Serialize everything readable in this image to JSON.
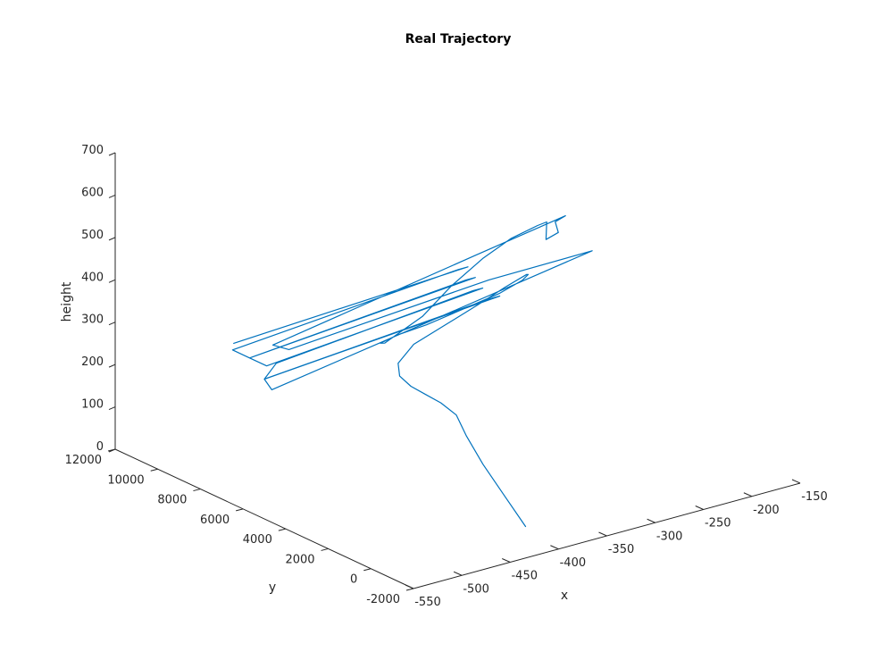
{
  "chart_data": {
    "type": "line",
    "title": "Real Trajectory",
    "xlabel": "x",
    "ylabel": "y",
    "zlabel": "height",
    "xlim": [
      -550,
      -150
    ],
    "ylim": [
      -2000,
      12000
    ],
    "zlim": [
      0,
      700
    ],
    "xticks": [
      -550,
      -500,
      -450,
      -400,
      -350,
      -300,
      -250,
      -200,
      -150
    ],
    "yticks": [
      -2000,
      0,
      2000,
      4000,
      6000,
      8000,
      10000,
      12000
    ],
    "zticks": [
      0,
      100,
      200,
      300,
      400,
      500,
      600,
      700
    ],
    "grid": false,
    "series_color": "#0072BD",
    "series": [
      {
        "description": "spiral climb then lawnmower survey pattern",
        "x": [
          -390,
          -390,
          -390,
          -385,
          -380,
          -385,
          -395,
          -405,
          -410,
          -405,
          -380,
          -340,
          -300,
          -270,
          -250,
          -255,
          -270,
          -300,
          -340,
          -380,
          -410,
          -430,
          -430,
          -380,
          -330,
          -280,
          -240,
          -210,
          -205,
          -230,
          -215,
          -205,
          -190,
          -300,
          -550,
          -540,
          -300,
          -180,
          -240,
          -560,
          -550,
          -280,
          -290,
          -550,
          -520,
          -290,
          -280,
          -530,
          -530,
          -280,
          -270,
          -530,
          -530,
          -270,
          -260,
          -520
        ],
        "y": [
          0,
          1000,
          2000,
          3000,
          3700,
          4200,
          4500,
          4700,
          5000,
          5300,
          5700,
          6000,
          6300,
          6400,
          6300,
          6000,
          5600,
          5300,
          5200,
          5100,
          5100,
          5000,
          4800,
          5300,
          6200,
          7000,
          7500,
          7600,
          7400,
          6300,
          6400,
          7000,
          7200,
          6500,
          4600,
          4300,
          5800,
          6400,
          5800,
          4200,
          5000,
          6200,
          6200,
          5000,
          5800,
          7000,
          7000,
          5800,
          6600,
          7800,
          7800,
          6600,
          7400,
          8600,
          8600,
          7800
        ],
        "z": [
          0,
          50,
          100,
          140,
          170,
          190,
          210,
          230,
          250,
          270,
          290,
          305,
          320,
          340,
          360,
          370,
          375,
          370,
          360,
          350,
          345,
          340,
          345,
          365,
          385,
          400,
          410,
          420,
          430,
          430,
          435,
          440,
          440,
          430,
          420,
          410,
          390,
          370,
          375,
          330,
          330,
          330,
          330,
          330,
          330,
          330,
          330,
          330,
          330,
          330,
          330,
          330,
          330,
          330,
          330,
          330
        ]
      }
    ]
  }
}
